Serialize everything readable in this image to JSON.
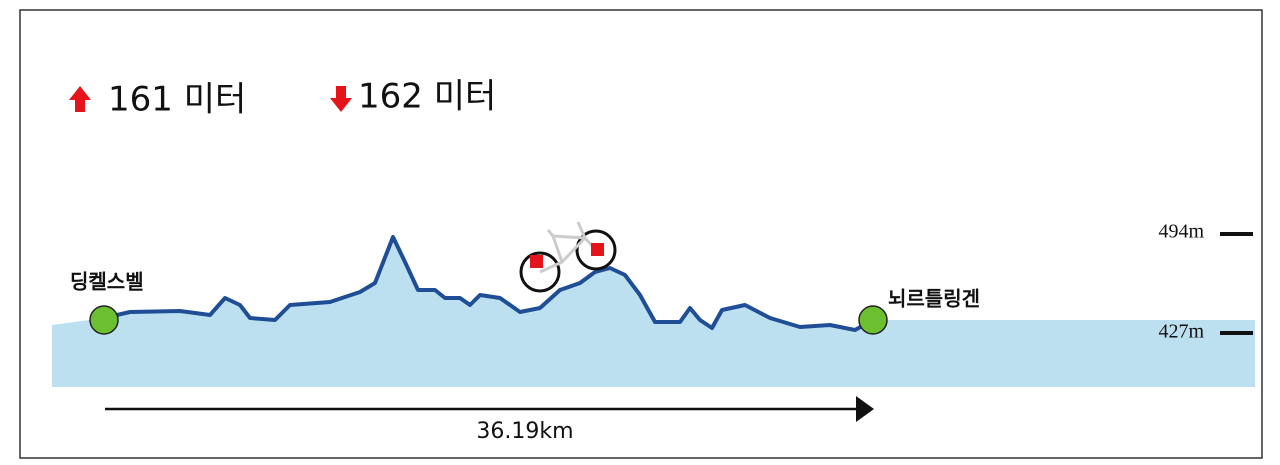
{
  "stats": {
    "ascent": "161 미터",
    "descent": "162 미터"
  },
  "route": {
    "start": "딩켈스벨",
    "end": "뇌르틀링겐",
    "distance": "36.19km"
  },
  "elevation_labels": {
    "high": "494m",
    "low": "427m"
  }
}
